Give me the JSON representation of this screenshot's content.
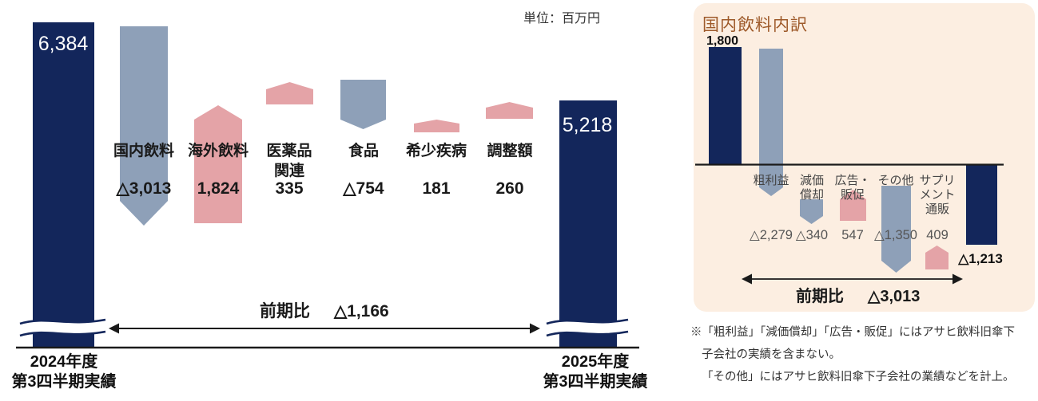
{
  "page": {
    "unit_label": "単位：百万円",
    "footnote_lines": [
      "※「粗利益」「減価償却」「広告・販促」にはアサヒ飲料旧傘下",
      "子会社の実績を含まない。",
      "「その他」にはアサヒ飲料旧傘下子会社の業績などを計上。"
    ]
  },
  "colors": {
    "navy": "#13265B",
    "steel": "#8EA0B8",
    "pink": "#E4A3A7",
    "inset_bg": "#FCEEE1",
    "title_brown": "#9E5A2A",
    "dark": "#1A1A1A",
    "gray_label": "#444444",
    "gray_value": "#555555",
    "white": "#FFFFFF"
  },
  "chart_data": [
    {
      "id": "main-waterfall",
      "type": "waterfall",
      "unit": "百万円",
      "axis_break": true,
      "legend_position": "none",
      "start": {
        "key": "fy2024-q3",
        "label_lines": [
          "2024年度",
          "第3四半期実績"
        ],
        "value": 6384,
        "display": "6,384"
      },
      "items": [
        {
          "key": "domestic-beverages",
          "label_lines": [
            "国内飲料"
          ],
          "value": -3013,
          "display": "△3,013"
        },
        {
          "key": "overseas-beverages",
          "label_lines": [
            "海外飲料"
          ],
          "value": 1824,
          "display": "1,824"
        },
        {
          "key": "pharmaceutical-related",
          "label_lines": [
            "医薬品",
            "関連"
          ],
          "value": 335,
          "display": "335"
        },
        {
          "key": "food",
          "label_lines": [
            "食品"
          ],
          "value": -754,
          "display": "△754"
        },
        {
          "key": "rare-disease",
          "label_lines": [
            "希少疾病"
          ],
          "value": 181,
          "display": "181"
        },
        {
          "key": "adjustment",
          "label_lines": [
            "調整額"
          ],
          "value": 260,
          "display": "260"
        }
      ],
      "end": {
        "key": "fy2025-q3",
        "label_lines": [
          "2025年度",
          "第3四半期実績"
        ],
        "value": 5218,
        "display": "5,218"
      },
      "delta": {
        "label": "前期比",
        "value": -1166,
        "display": "△1,166"
      }
    },
    {
      "id": "domestic-beverages-breakdown",
      "type": "waterfall",
      "title": "国内飲料内訳",
      "legend_position": "none",
      "start": {
        "key": "breakdown-start",
        "value": 1800,
        "display": "1,800"
      },
      "items": [
        {
          "key": "gross-profit",
          "label_lines": [
            "粗利益"
          ],
          "value": -2279,
          "display": "△2,279"
        },
        {
          "key": "depreciation",
          "label_lines": [
            "減価",
            "償却"
          ],
          "value": -340,
          "display": "△340"
        },
        {
          "key": "advertising-promotion",
          "label_lines": [
            "広告・",
            "販促"
          ],
          "value": 547,
          "display": "547"
        },
        {
          "key": "others",
          "label_lines": [
            "その他"
          ],
          "value": -1350,
          "display": "△1,350"
        },
        {
          "key": "supplement-mail-order",
          "label_lines": [
            "サプリ",
            "メント",
            "通販"
          ],
          "value": 409,
          "display": "409"
        }
      ],
      "end": {
        "key": "breakdown-end",
        "value": -1213,
        "display": "△1,213"
      },
      "delta": {
        "label": "前期比",
        "value": -3013,
        "display": "△3,013"
      }
    }
  ]
}
